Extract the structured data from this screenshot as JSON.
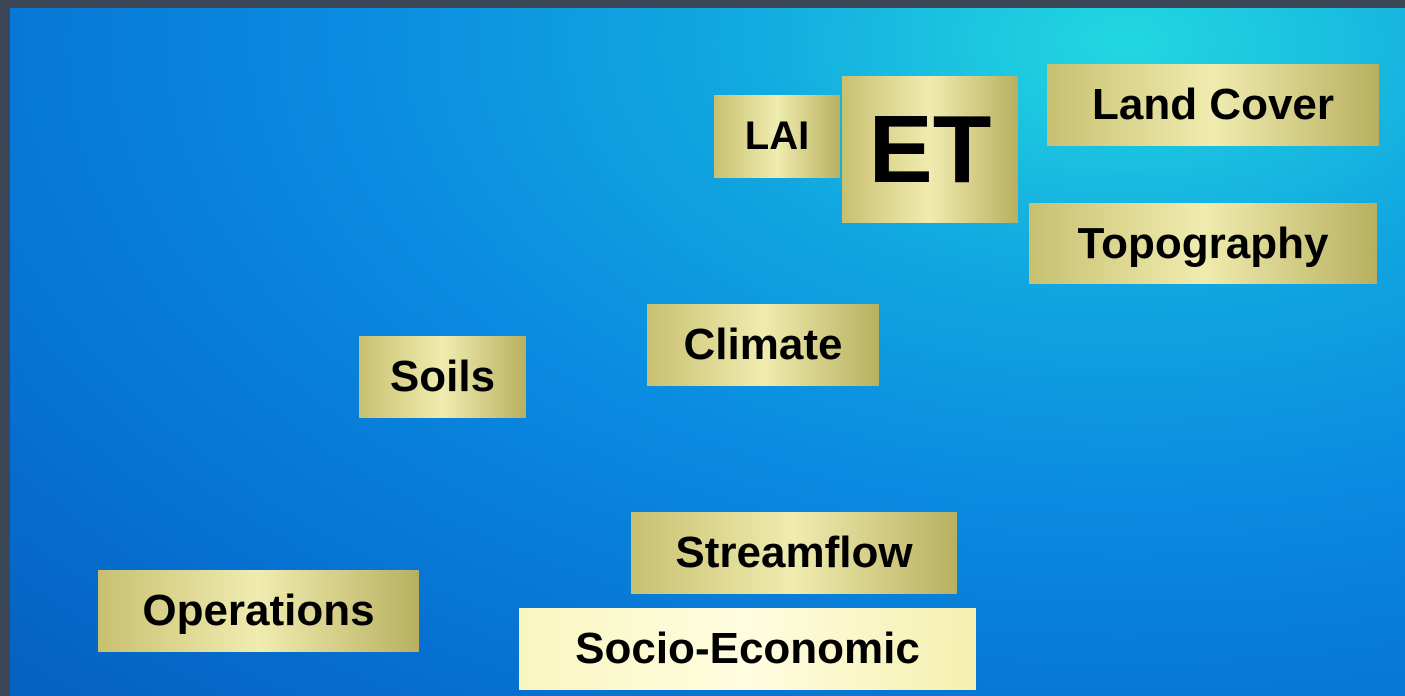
{
  "labels": [
    "LAI",
    "ET",
    "Land Cover",
    "Topography",
    "Climate",
    "Soils",
    "Streamflow",
    "Operations",
    "Socio-Economic"
  ]
}
